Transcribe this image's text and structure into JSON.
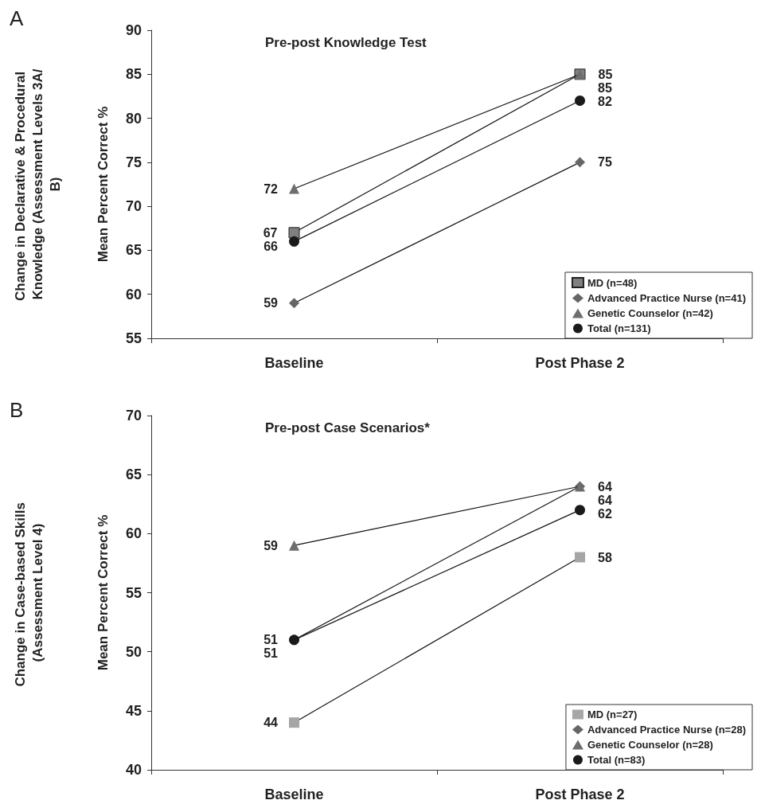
{
  "chart_data": [
    {
      "type": "line",
      "title": "Pre-post Knowledge Test",
      "ylabel": "Mean Percent Correct %",
      "annotations": [
        "A",
        "Change in Declarative & Procedural Knowledge (Assessment Levels 3A/B)"
      ],
      "categories": [
        "Baseline",
        "Post Phase 2"
      ],
      "ylim": [
        55,
        90
      ],
      "yticks": [
        55,
        60,
        65,
        70,
        75,
        80,
        85,
        90
      ],
      "grid": false,
      "legend": "bottom right",
      "data_labels": true,
      "line_style": "solid",
      "series": [
        {
          "name": "MD (n=48)",
          "color": "#808080",
          "marker": "square",
          "values": [
            67,
            85
          ]
        },
        {
          "name": "Advanced Practice Nurse (n=41)",
          "color": "#666666",
          "marker": "diamond",
          "values": [
            59,
            75
          ]
        },
        {
          "name": "Genetic Counselor (n=42)",
          "color": "#6e6e6e",
          "marker": "triangle",
          "values": [
            72,
            85
          ]
        },
        {
          "name": "Total (n=131)",
          "color": "#1a1a1a",
          "marker": "circle",
          "values": [
            66,
            82
          ]
        }
      ]
    },
    {
      "type": "line",
      "title": "Pre-post Case Scenarios*",
      "ylabel": "Mean Percent Correct %",
      "annotations": [
        "B",
        "Change in Case-based Skills (Assessment Level 4)"
      ],
      "categories": [
        "Baseline",
        "Post Phase 2"
      ],
      "ylim": [
        40,
        70
      ],
      "yticks": [
        40,
        45,
        50,
        55,
        60,
        65,
        70
      ],
      "grid": false,
      "legend": "bottom right",
      "data_labels": true,
      "line_style": "solid",
      "series": [
        {
          "name": "MD (n=27)",
          "color": "#a6a6a6",
          "marker": "square",
          "values": [
            44,
            58
          ]
        },
        {
          "name": "Advanced Practice Nurse (n=28)",
          "color": "#666666",
          "marker": "diamond",
          "values": [
            51,
            64
          ]
        },
        {
          "name": "Genetic Counselor (n=28)",
          "color": "#6e6e6e",
          "marker": "triangle",
          "values": [
            59,
            64
          ]
        },
        {
          "name": "Total (n=83)",
          "color": "#1a1a1a",
          "marker": "circle",
          "values": [
            51,
            62
          ]
        }
      ]
    }
  ]
}
